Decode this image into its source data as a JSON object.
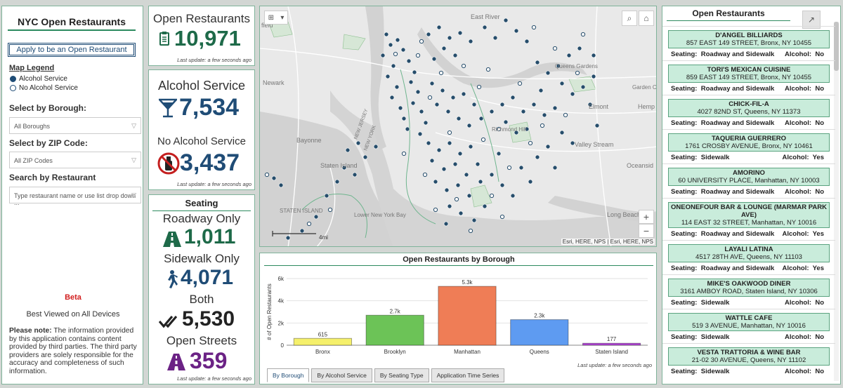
{
  "left": {
    "title": "NYC Open Restaurants",
    "apply_label": "Apply to be an Open Restaurant",
    "legend_title": "Map Legend",
    "legend_alcohol": "Alcohol Service",
    "legend_no_alcohol": "No Alcohol Service",
    "borough_label": "Select by Borough:",
    "borough_value": "All Boroughs",
    "zip_label": "Select by ZIP Code:",
    "zip_value": "All ZIP Codes",
    "search_label": "Search by Restaurant",
    "search_placeholder": "Type restaurant name or use list drop down ...",
    "beta": "Beta",
    "best_viewed": "Best  Viewed on All Devices",
    "note_bold": "Please note:",
    "note_text": " The information provided by this application contains content provided by third parties. The third party providers are solely responsible for the accuracy and completeness of such information."
  },
  "stats": {
    "open_label": "Open Restaurants",
    "open_value": "10,971",
    "alcohol_label": "Alcohol Service",
    "alcohol_value": "7,534",
    "no_alcohol_label": "No Alcohol Service",
    "no_alcohol_value": "3,437",
    "seating_title": "Seating",
    "roadway_label": "Roadway Only",
    "roadway_value": "1,011",
    "sidewalk_label": "Sidewalk Only",
    "sidewalk_value": "4,071",
    "both_label": "Both",
    "both_value": "5,530",
    "streets_label": "Open Streets",
    "streets_value": "359",
    "last_update": "Last update: a few seconds ago"
  },
  "map": {
    "labels": [
      "field",
      "East River",
      "Newark",
      "Queens Gardens",
      "Garden C",
      "Elmont",
      "Hemp",
      "Bayonne",
      "Valley Stream",
      "Staten Island",
      "Oceansid",
      "STATEN ISLAND",
      "Lower New York Bay",
      "Long Beach",
      "NEW JERSEY",
      "NEW YORK",
      "Richmond Hill"
    ],
    "scale_label": "4mi",
    "attribution": "Esri, HERE, NPS | Esri, HERE, NPS"
  },
  "chart_data": {
    "type": "bar",
    "title": "Open Restaurants by Borough",
    "categories": [
      "Bronx",
      "Brooklyn",
      "Manhattan",
      "Queens",
      "Staten Island"
    ],
    "values": [
      615,
      2700,
      5300,
      2300,
      177
    ],
    "data_labels": [
      "615",
      "2.7k",
      "5.3k",
      "2.3k",
      "177"
    ],
    "colors": [
      "#f5f06b",
      "#6cc357",
      "#ef7d56",
      "#5e9bf1",
      "#b145d6"
    ],
    "ylabel": "# of Open Restaurants",
    "xlabel": "",
    "yticks": [
      "0",
      "2k",
      "4k",
      "6k"
    ],
    "ylim": [
      0,
      6000
    ],
    "grid": true
  },
  "chart_tabs": [
    "By Borough",
    "By Alcohol Service",
    "By Seating Type",
    "Application Time Series"
  ],
  "list": {
    "title": "Open Restaurants",
    "seating_key": "Seating:",
    "alcohol_key": "Alcohol:",
    "items": [
      {
        "name": "D'ANGEL BILLIARDS",
        "address": "857 EAST 149 STREET, Bronx, NY 10455",
        "seating": "Roadway and Sidewalk",
        "alcohol": "No"
      },
      {
        "name": "TORI'S MEXICAN CUISINE",
        "address": "859 EAST 149 STREET, Bronx, NY 10455",
        "seating": "Roadway and Sidewalk",
        "alcohol": "No"
      },
      {
        "name": "CHICK-FIL-A",
        "address": "4027 82ND ST, Queens, NY 11373",
        "seating": "Roadway and Sidewalk",
        "alcohol": "No"
      },
      {
        "name": "TAQUERIA GUERRERO",
        "address": "1761 CROSBY AVENUE, Bronx, NY 10461",
        "seating": "Sidewalk",
        "alcohol": "Yes"
      },
      {
        "name": "AMORINO",
        "address": "60 UNIVERSITY PLACE, Manhattan, NY 10003",
        "seating": "Roadway and Sidewalk",
        "alcohol": "No"
      },
      {
        "name": "ONEONEFOUR BAR & LOUNGE (MARMAR PARK AVE)",
        "address": "114 EAST 32 STREET, Manhattan, NY 10016",
        "seating": "Roadway and Sidewalk",
        "alcohol": "Yes"
      },
      {
        "name": "LAYALI LATINA",
        "address": "4517 28TH AVE, Queens, NY 11103",
        "seating": "Roadway and Sidewalk",
        "alcohol": "Yes"
      },
      {
        "name": "MIKE'S OAKWOOD DINER",
        "address": "3161 AMBOY ROAD, Staten Island, NY 10306",
        "seating": "Sidewalk",
        "alcohol": "No"
      },
      {
        "name": "WATTLE CAFE",
        "address": "519 3 AVENUE, Manhattan, NY 10016",
        "seating": "Sidewalk",
        "alcohol": "No"
      },
      {
        "name": "VESTA TRATTORIA & WINE BAR",
        "address": "21-02 30 AVENUE, Queens, NY 11102",
        "seating": "Sidewalk",
        "alcohol": "No"
      }
    ]
  },
  "colors": {
    "accent_green": "#2c8a5f",
    "navy": "#1f4c76",
    "dark_green": "#1e6a49",
    "purple": "#6b2285",
    "list_bg": "#c9ecdb"
  },
  "icons": [
    "clipboard-icon",
    "cocktail-icon",
    "no-alcohol-icon",
    "road-icon",
    "walker-icon",
    "double-check-icon",
    "street-icon",
    "search-icon",
    "home-icon",
    "grid-icon",
    "chevron-down-icon",
    "external-link-icon"
  ]
}
